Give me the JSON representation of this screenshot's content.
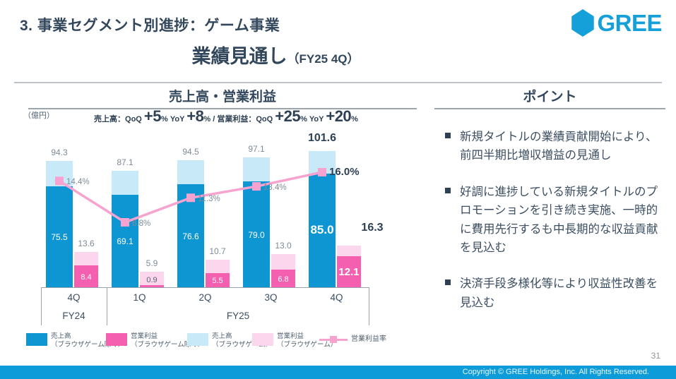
{
  "header": {
    "title": "3. 事業セグメント別進捗：ゲーム事業",
    "subtitle": "業績見通し",
    "subtitle_suffix": "（FY25 4Q）",
    "logo_text": "GREE"
  },
  "left_panel": {
    "header": "売上高・営業利益",
    "unit_label": "（億円）",
    "stats_segments": [
      {
        "k": "t",
        "v": "売上高：QoQ "
      },
      {
        "k": "b",
        "v": "+5"
      },
      {
        "k": "p",
        "v": "% "
      },
      {
        "k": "t",
        "v": "YoY "
      },
      {
        "k": "b",
        "v": "+8"
      },
      {
        "k": "p",
        "v": "% "
      },
      {
        "k": "t",
        "v": "/ 営業利益：QoQ "
      },
      {
        "k": "b",
        "v": "+25"
      },
      {
        "k": "p",
        "v": "% "
      },
      {
        "k": "t",
        "v": "YoY "
      },
      {
        "k": "b",
        "v": "+20"
      },
      {
        "k": "p",
        "v": "%"
      }
    ]
  },
  "chart_data": {
    "type": "bar+line",
    "title": "売上高・営業利益",
    "unit": "億円",
    "categories": [
      "4Q",
      "1Q",
      "2Q",
      "3Q",
      "4Q"
    ],
    "fiscal_groups": [
      {
        "label": "FY24",
        "span": 1
      },
      {
        "label": "FY25",
        "span": 4
      }
    ],
    "revenue_total": [
      94.3,
      87.1,
      94.5,
      97.1,
      101.6
    ],
    "revenue_core": [
      75.5,
      69.1,
      76.6,
      79.0,
      85.0
    ],
    "revenue_total_labels": [
      "94.3",
      "87.1",
      "94.5",
      "97.1",
      "101.6"
    ],
    "revenue_core_labels": [
      "75.5",
      "69.1",
      "76.6",
      "79.0",
      "85.0"
    ],
    "profit_total": [
      13.6,
      5.9,
      10.7,
      13.0,
      16.3
    ],
    "profit_core": [
      8.4,
      0.9,
      5.5,
      6.8,
      12.1
    ],
    "profit_total_labels": [
      "13.6",
      "5.9",
      "10.7",
      "13.0",
      "16.3"
    ],
    "profit_core_labels": [
      "8.4",
      "0.9",
      "5.5",
      "6.8",
      "12.1"
    ],
    "margin_pct": [
      14.4,
      6.8,
      11.3,
      13.4,
      16.0
    ],
    "margin_labels": [
      "14.4%",
      "6.8%",
      "11.3%",
      "13.4%",
      "16.0%"
    ],
    "colors": {
      "revenue_core": "#0e96d3",
      "revenue_browser": "#c8e9f8",
      "profit_core": "#f55fb0",
      "profit_browser": "#fbd6ed",
      "margin_line": "#f6a3cf"
    },
    "legend": [
      {
        "type": "swatch",
        "color": "#0e96d3",
        "line1": "売上高",
        "line2": "（ブラウザゲーム除く）"
      },
      {
        "type": "swatch",
        "color": "#f55fb0",
        "line1": "営業利益",
        "line2": "（ブラウザゲーム除く）"
      },
      {
        "type": "swatch",
        "color": "#c8e9f8",
        "line1": "売上高",
        "line2": "（ブラウザゲーム）"
      },
      {
        "type": "swatch",
        "color": "#fbd6ed",
        "line1": "営業利益",
        "line2": "（ブラウザゲーム）"
      },
      {
        "type": "line",
        "color": "#f6a3cf",
        "line1": "営業利益率",
        "line2": ""
      }
    ]
  },
  "right_panel": {
    "header": "ポイント",
    "bullets": [
      "新規タイトルの業績貢献開始により、前四半期比増収増益の見通し",
      "好調に進捗している新規タイトルのプロモーションを引き続き実施、一時的に費用先行するも中長期的な収益貢献を見込む",
      "決済手段多様化等により収益性改善を見込む"
    ]
  },
  "page": {
    "number": "31",
    "footer": "Copyright © GREE Holdings, Inc. All Rights Reserved."
  }
}
